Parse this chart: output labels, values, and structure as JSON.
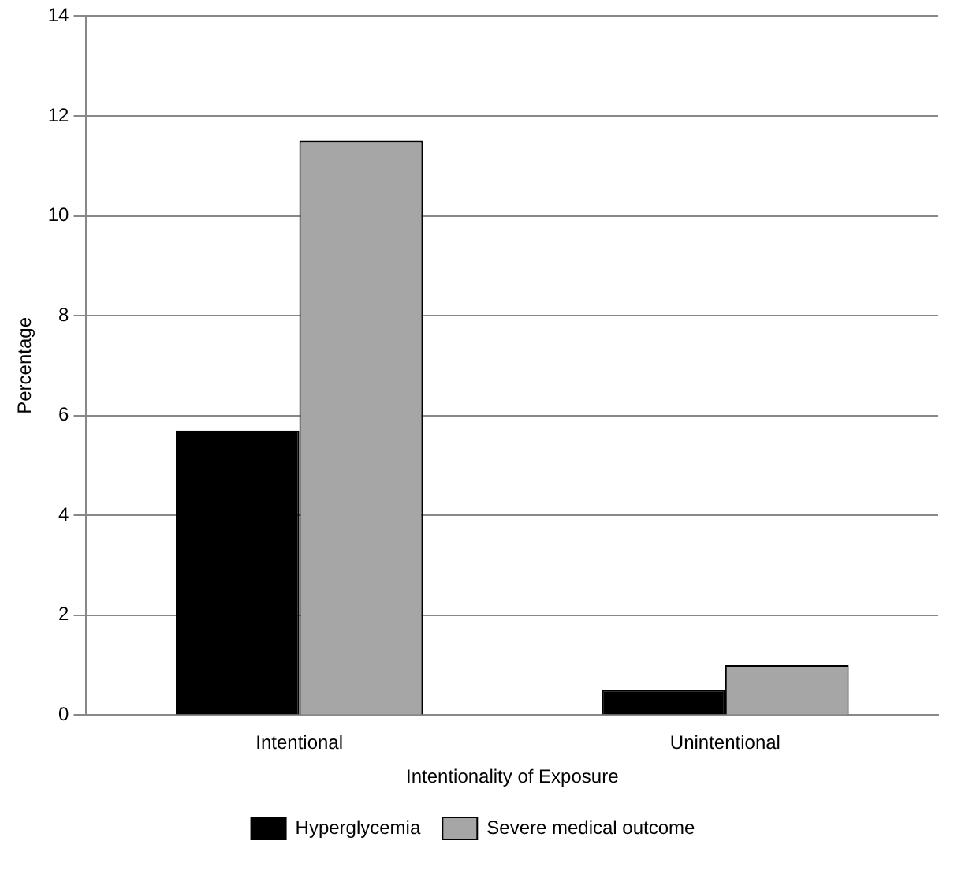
{
  "chart_data": {
    "type": "bar",
    "xlabel": "Intentionality of Exposure",
    "ylabel": "Percentage",
    "categories": [
      "Intentional",
      "Unintentional"
    ],
    "series": [
      {
        "name": "Hyperglycemia",
        "color": "#000000",
        "values": [
          5.7,
          0.5
        ]
      },
      {
        "name": "Severe medical outcome",
        "color": "#a6a6a6",
        "values": [
          11.5,
          1.0
        ]
      }
    ],
    "ylim": [
      0,
      14
    ],
    "yticks": [
      0,
      2,
      4,
      6,
      8,
      10,
      12,
      14
    ],
    "grid": "y",
    "legend": "bottom"
  }
}
